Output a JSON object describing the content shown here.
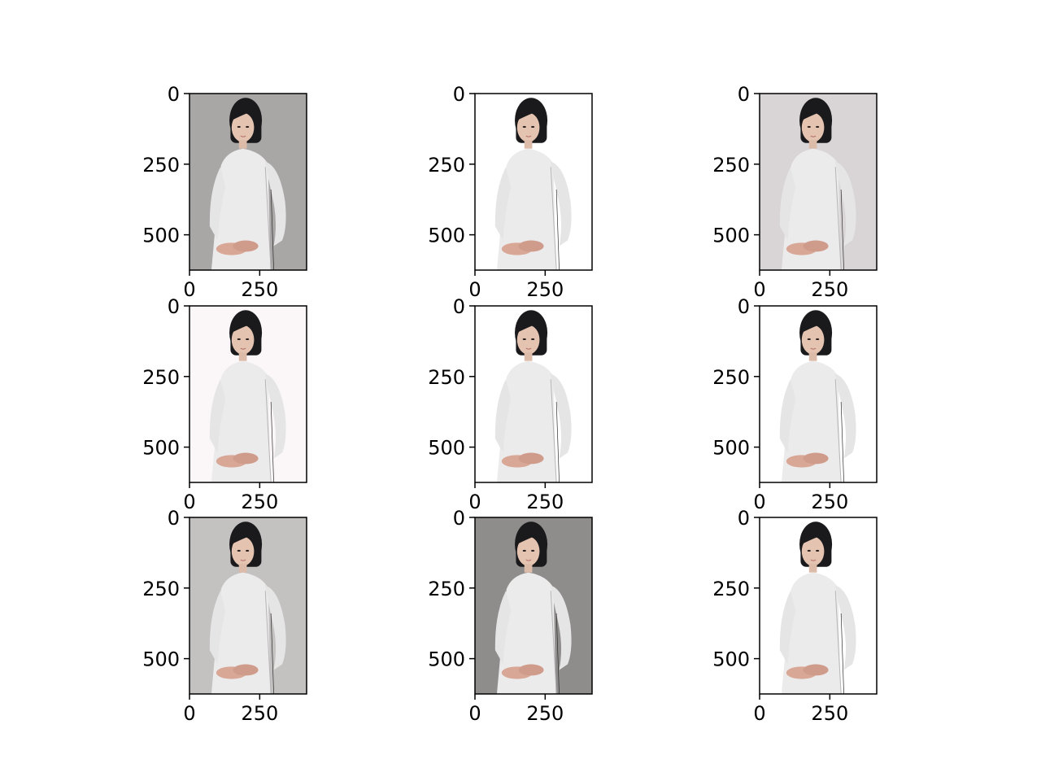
{
  "figure": {
    "grid": "3x3",
    "background": "#ffffff",
    "axes_color": "#000000"
  },
  "chart_data": [
    {
      "type": "image",
      "panel": 1,
      "content": "portrait-photo",
      "variant": "gray-background",
      "xlim": [
        0,
        417
      ],
      "ylim": [
        625,
        0
      ],
      "xticks": [
        0,
        250
      ],
      "yticks": [
        0,
        250,
        500
      ],
      "xtick_labels": [
        "0",
        "250"
      ],
      "ytick_labels": [
        "0",
        "250",
        "500"
      ],
      "grid": false,
      "bg": "#a9a6a6"
    },
    {
      "type": "image",
      "panel": 2,
      "content": "portrait-photo",
      "variant": "background-removed-white",
      "xlim": [
        0,
        417
      ],
      "ylim": [
        625,
        0
      ],
      "xticks": [
        0,
        250
      ],
      "yticks": [
        0,
        250,
        500
      ],
      "xtick_labels": [
        "0",
        "250"
      ],
      "ytick_labels": [
        "0",
        "250",
        "500"
      ],
      "grid": false,
      "bg": "#ffffff"
    },
    {
      "type": "image",
      "panel": 3,
      "content": "portrait-photo",
      "variant": "light-gray-background",
      "xlim": [
        0,
        417
      ],
      "ylim": [
        625,
        0
      ],
      "xticks": [
        0,
        250
      ],
      "yticks": [
        0,
        250,
        500
      ],
      "xtick_labels": [
        "0",
        "250"
      ],
      "ytick_labels": [
        "0",
        "250",
        "500"
      ],
      "grid": false,
      "bg": "#d9d5d6"
    },
    {
      "type": "image",
      "panel": 4,
      "content": "portrait-photo",
      "variant": "near-white-background",
      "xlim": [
        0,
        417
      ],
      "ylim": [
        625,
        0
      ],
      "xticks": [
        0,
        250
      ],
      "yticks": [
        0,
        250,
        500
      ],
      "xtick_labels": [
        "0",
        "250"
      ],
      "ytick_labels": [
        "0",
        "250",
        "500"
      ],
      "grid": false,
      "bg": "#fbf7f9"
    },
    {
      "type": "image",
      "panel": 5,
      "content": "portrait-photo",
      "variant": "background-removed-white",
      "xlim": [
        0,
        417
      ],
      "ylim": [
        625,
        0
      ],
      "xticks": [
        0,
        250
      ],
      "yticks": [
        0,
        250,
        500
      ],
      "xtick_labels": [
        "0",
        "250"
      ],
      "ytick_labels": [
        "0",
        "250",
        "500"
      ],
      "grid": false,
      "bg": "#ffffff"
    },
    {
      "type": "image",
      "panel": 6,
      "content": "portrait-photo",
      "variant": "background-removed-white",
      "xlim": [
        0,
        417
      ],
      "ylim": [
        625,
        0
      ],
      "xticks": [
        0,
        250
      ],
      "yticks": [
        0,
        250,
        500
      ],
      "xtick_labels": [
        "0",
        "250"
      ],
      "ytick_labels": [
        "0",
        "250",
        "500"
      ],
      "grid": false,
      "bg": "#ffffff"
    },
    {
      "type": "image",
      "panel": 7,
      "content": "portrait-photo",
      "variant": "gray-background",
      "xlim": [
        0,
        417
      ],
      "ylim": [
        625,
        0
      ],
      "xticks": [
        0,
        250
      ],
      "yticks": [
        0,
        250,
        500
      ],
      "xtick_labels": [
        "0",
        "250"
      ],
      "ytick_labels": [
        "0",
        "250",
        "500"
      ],
      "grid": false,
      "bg": "#c4c1c1"
    },
    {
      "type": "image",
      "panel": 8,
      "content": "portrait-photo",
      "variant": "dark-gray-background",
      "xlim": [
        0,
        417
      ],
      "ylim": [
        625,
        0
      ],
      "xticks": [
        0,
        250
      ],
      "yticks": [
        0,
        250,
        500
      ],
      "xtick_labels": [
        "0",
        "250"
      ],
      "ytick_labels": [
        "0",
        "250",
        "500"
      ],
      "grid": false,
      "bg": "#8f8c8c"
    },
    {
      "type": "image",
      "panel": 9,
      "content": "portrait-photo",
      "variant": "background-removed-white",
      "xlim": [
        0,
        417
      ],
      "ylim": [
        625,
        0
      ],
      "xticks": [
        0,
        250
      ],
      "yticks": [
        0,
        250,
        500
      ],
      "xtick_labels": [
        "0",
        "250"
      ],
      "ytick_labels": [
        "0",
        "250",
        "500"
      ],
      "grid": false,
      "bg": "#ffffff"
    }
  ]
}
